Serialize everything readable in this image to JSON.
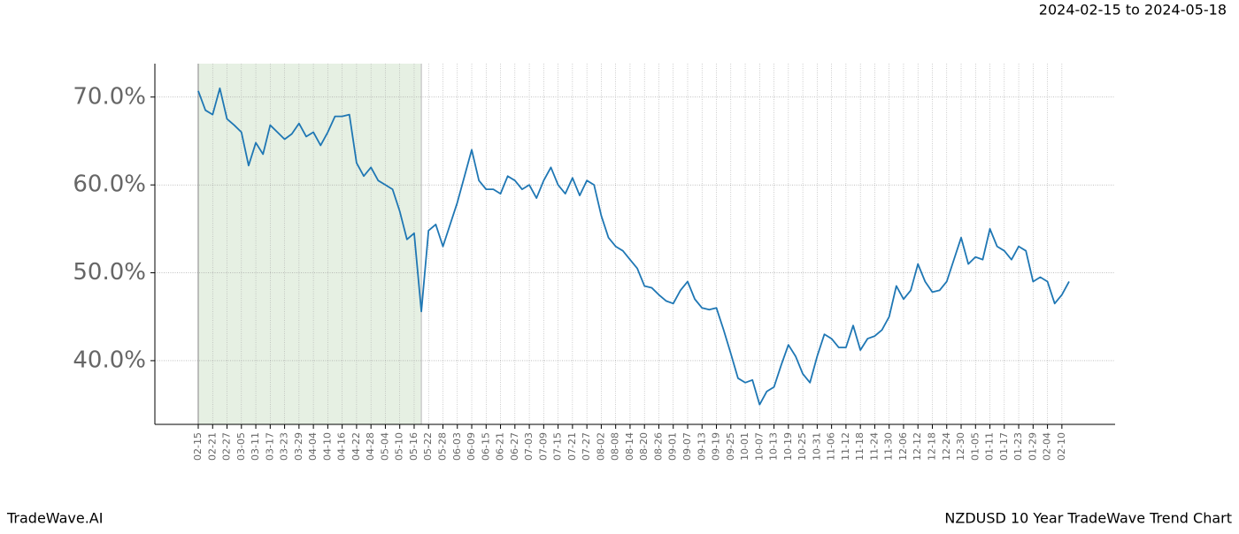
{
  "chart_data": {
    "type": "line",
    "title": "NZDUSD 10 Year TradeWave Trend Chart",
    "subtitle": "2024-02-15 to 2024-05-18",
    "brand": "TradeWave.AI",
    "categories": [
      "02-15",
      null,
      "02-21",
      null,
      "02-27",
      null,
      "03-05",
      null,
      "03-11",
      null,
      "03-17",
      null,
      "03-23",
      null,
      "03-29",
      null,
      "04-04",
      null,
      "04-10",
      null,
      "04-16",
      null,
      "04-22",
      null,
      "04-28",
      null,
      "05-04",
      null,
      "05-10",
      null,
      "05-16",
      null,
      "05-22",
      null,
      "05-28",
      null,
      "06-03",
      null,
      "06-09",
      null,
      "06-15",
      null,
      "06-21",
      null,
      "06-27",
      null,
      "07-03",
      null,
      "07-09",
      null,
      "07-15",
      null,
      "07-21",
      null,
      "07-27",
      null,
      "08-02",
      null,
      "08-08",
      null,
      "08-14",
      null,
      "08-20",
      null,
      "08-26",
      null,
      "09-01",
      null,
      "09-07",
      null,
      "09-13",
      null,
      "09-19",
      null,
      "09-25",
      null,
      "10-01",
      null,
      "10-07",
      null,
      "10-13",
      null,
      "10-19",
      null,
      "10-25",
      null,
      "10-31",
      null,
      "11-06",
      null,
      "11-12",
      null,
      "11-18",
      null,
      "11-24",
      null,
      "11-30",
      null,
      "12-06",
      null,
      "12-12",
      null,
      "12-18",
      null,
      "12-24",
      null,
      "12-30",
      null,
      "01-05",
      null,
      "01-11",
      null,
      "01-17",
      null,
      "01-23",
      null,
      "01-29",
      null,
      "02-04",
      null,
      "02-10",
      null
    ],
    "values": [
      70.7,
      68.5,
      68.0,
      71.0,
      67.5,
      66.8,
      66.0,
      62.2,
      64.8,
      63.5,
      66.8,
      66.0,
      65.2,
      65.8,
      67.0,
      65.5,
      66.0,
      64.5,
      66.0,
      67.8,
      67.8,
      68.0,
      62.5,
      61.0,
      62.0,
      60.5,
      60.0,
      59.5,
      57.0,
      53.8,
      54.5,
      45.6,
      54.8,
      55.5,
      53.0,
      55.5,
      58.0,
      61.0,
      64.0,
      60.5,
      59.5,
      59.5,
      59.0,
      61.0,
      60.5,
      59.5,
      60.0,
      58.5,
      60.5,
      62.0,
      60.0,
      59.0,
      60.8,
      58.8,
      60.5,
      60.0,
      56.5,
      54.0,
      53.0,
      52.5,
      51.5,
      50.5,
      48.5,
      48.3,
      47.5,
      46.8,
      46.5,
      48.0,
      49.0,
      47.0,
      46.0,
      45.8,
      46.0,
      43.5,
      40.8,
      38.0,
      37.5,
      37.8,
      35.0,
      36.5,
      37.0,
      39.5,
      41.8,
      40.5,
      38.5,
      37.5,
      40.5,
      43.0,
      42.5,
      41.5,
      41.5,
      44.0,
      41.2,
      42.5,
      42.8,
      43.5,
      45.0,
      48.5,
      47.0,
      48.0,
      51.0,
      49.0,
      47.8,
      48.0,
      49.0,
      51.5,
      54.0,
      51.0,
      51.8,
      51.5,
      55.0,
      53.0,
      52.5,
      51.5,
      53.0,
      52.5,
      49.0,
      49.5,
      49.0,
      46.5,
      47.5,
      49.0
    ],
    "color": "#1f77b4",
    "shaded_span": [
      0,
      31
    ],
    "shade_color": "#e6f0e3",
    "ylim": [
      32.75,
      73.8
    ],
    "yticks": [
      {
        "value": 40,
        "label": "40.0%"
      },
      {
        "value": 50,
        "label": "50.0%"
      },
      {
        "value": 60,
        "label": "60.0%"
      },
      {
        "value": 70,
        "label": "70.0%"
      }
    ],
    "grid": true
  }
}
